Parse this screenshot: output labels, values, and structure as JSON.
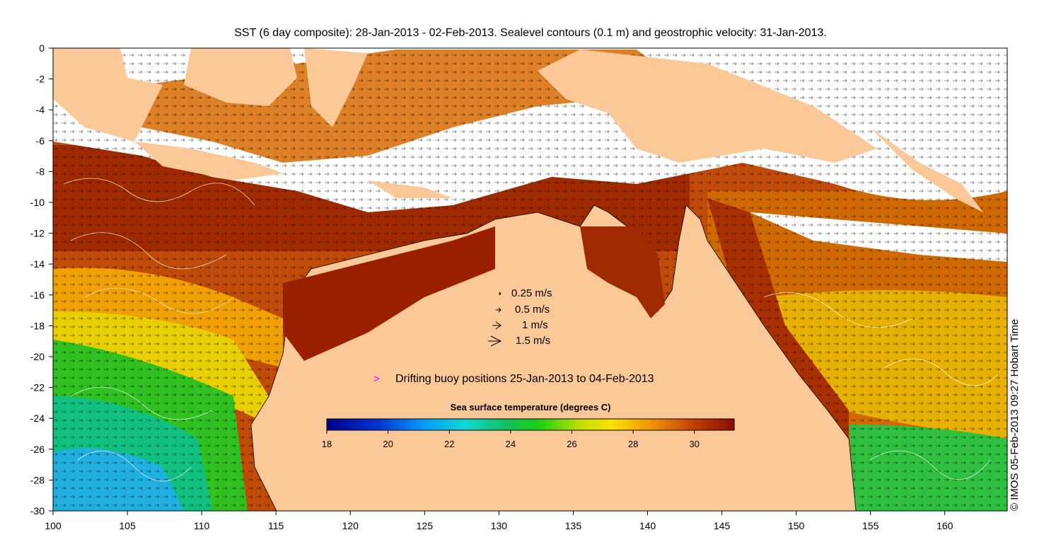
{
  "title": "SST (6 day composite): 28-Jan-2013 - 02-Feb-2013. Sealevel contours (0.1 m) and geostrophic velocity: 31-Jan-2013.",
  "credit": "© IMOS 05-Feb-2013 09:27 Hobart Time",
  "velocity_legend": [
    "0.25 m/s",
    "0.5 m/s",
    "1 m/s",
    "1.5 m/s"
  ],
  "buoy_legend": "Drifting buoy positions 25-Jan-2013 to 04-Feb-2013",
  "buoy_marker": ">",
  "colorbar": {
    "label": "Sea surface temperature (degrees C)",
    "min": 18,
    "max": 31.3,
    "ticks": [
      "18",
      "20",
      "22",
      "24",
      "26",
      "28",
      "30"
    ]
  },
  "axes": {
    "x_ticks": [
      "100",
      "105",
      "110",
      "115",
      "120",
      "125",
      "130",
      "135",
      "140",
      "145",
      "150",
      "155",
      "160"
    ],
    "y_ticks": [
      "0",
      "-2",
      "-4",
      "-6",
      "-8",
      "-10",
      "-12",
      "-14",
      "-16",
      "-18",
      "-20",
      "-22",
      "-24",
      "-26",
      "-28",
      "-30"
    ],
    "x_range": [
      100,
      164.2
    ],
    "y_range": [
      -30,
      0
    ]
  },
  "colors": {
    "land": "#fbc997",
    "cloud": "#ffffff",
    "buoy": "#ff00ff",
    "warm": "#9b1a00",
    "hot": "#8a0a00"
  }
}
